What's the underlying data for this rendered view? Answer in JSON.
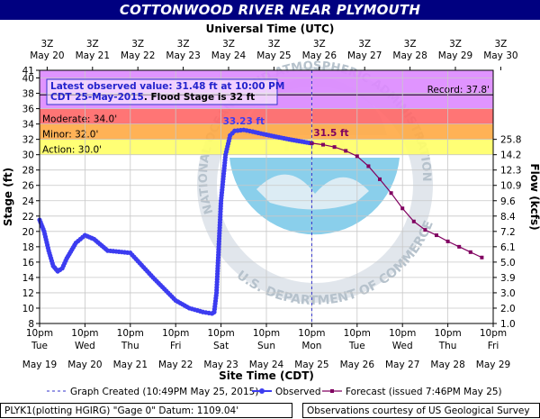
{
  "title": "COTTONWOOD RIVER NEAR PLYMOUTH",
  "top_axis_title": "Universal Time (UTC)",
  "bottom_axis_title": "Site Time (CDT)",
  "left_axis_title": "Stage (ft)",
  "right_axis_title": "Flow (kcfs)",
  "utc_ticks": [
    {
      "hour": "3Z",
      "date": "May 20"
    },
    {
      "hour": "3Z",
      "date": "May 21"
    },
    {
      "hour": "3Z",
      "date": "May 22"
    },
    {
      "hour": "3Z",
      "date": "May 23"
    },
    {
      "hour": "3Z",
      "date": "May 24"
    },
    {
      "hour": "3Z",
      "date": "May 25"
    },
    {
      "hour": "3Z",
      "date": "May 26"
    },
    {
      "hour": "3Z",
      "date": "May 27"
    },
    {
      "hour": "3Z",
      "date": "May 28"
    },
    {
      "hour": "3Z",
      "date": "May 29"
    },
    {
      "hour": "3Z",
      "date": "May 30"
    }
  ],
  "local_ticks": [
    {
      "time": "10pm",
      "day": "Tue",
      "date": "May 19"
    },
    {
      "time": "10pm",
      "day": "Wed",
      "date": "May 20"
    },
    {
      "time": "10pm",
      "day": "Thu",
      "date": "May 21"
    },
    {
      "time": "10pm",
      "day": "Fri",
      "date": "May 22"
    },
    {
      "time": "10pm",
      "day": "Sat",
      "date": "May 23"
    },
    {
      "time": "10pm",
      "day": "Sun",
      "date": "May 24"
    },
    {
      "time": "10pm",
      "day": "Mon",
      "date": "May 25"
    },
    {
      "time": "10pm",
      "day": "Tue",
      "date": "May 26"
    },
    {
      "time": "10pm",
      "day": "Wed",
      "date": "May 27"
    },
    {
      "time": "10pm",
      "day": "Thu",
      "date": "May 28"
    },
    {
      "time": "10pm",
      "day": "Fri",
      "date": "May 29"
    }
  ],
  "stage_ticks": [
    "8",
    "10",
    "12",
    "14",
    "16",
    "18",
    "20",
    "22",
    "24",
    "26",
    "28",
    "30",
    "32",
    "34",
    "36",
    "38",
    "40",
    "41"
  ],
  "flow_ticks": [
    "1.0",
    "2.0",
    "3.0",
    "3.9",
    "5.0",
    "6.1",
    "7.2",
    "8.4",
    "9.6",
    "10.9",
    "12.3",
    "14.2",
    "25.8"
  ],
  "info": {
    "line1": "Latest observed value: 31.48 ft at 10:00 PM",
    "line2a": "CDT 25-May-2015",
    "line2b": ". Flood Stage is 32 ft"
  },
  "categories": [
    {
      "label": "Record: 37.8'",
      "color": "#dd88ff"
    },
    {
      "label": "Moderate: 34.0'",
      "color": "#ff6666"
    },
    {
      "label": "Minor: 32.0'",
      "color": "#ffaa44"
    },
    {
      "label": "Action: 30.0'",
      "color": "#ffff66"
    }
  ],
  "crest_label": "33.23 ft",
  "forecast_label": "31.5 ft",
  "legend": {
    "created": "Graph Created (10:49PM May 25, 2015)",
    "observed": "Observed",
    "forecast": "Forecast (issued 7:46PM May 25)"
  },
  "footer_left": "PLYK1(plotting HGIRG) \"Gage 0\" Datum: 1109.04'",
  "footer_right": "Observations courtesy of US Geological Survey",
  "watermark_text": "NATIONAL OCEANIC AND ATMOSPHERIC ADMINISTRATION",
  "watermark_bottom": "U.S. DEPARTMENT OF COMMERCE",
  "watermark_noaa": "NOAA",
  "chart_data": {
    "type": "line",
    "title": "COTTONWOOD RIVER NEAR PLYMOUTH",
    "xlabel": "Site Time (CDT)",
    "ylabel": "Stage (ft)",
    "y2label": "Flow (kcfs)",
    "ylim": [
      8,
      41
    ],
    "x_unit": "days after 10pm CDT May 19, 2015",
    "xlim": [
      0,
      10
    ],
    "thresholds": {
      "action": 30.0,
      "minor": 32.0,
      "moderate": 34.0,
      "record": 37.8
    },
    "series": [
      {
        "name": "Observed",
        "x": [
          0,
          0.1,
          0.2,
          0.3,
          0.4,
          0.5,
          0.6,
          0.8,
          1.0,
          1.2,
          1.5,
          2.0,
          2.5,
          3.0,
          3.3,
          3.6,
          3.8,
          3.85,
          3.9,
          3.95,
          4.0,
          4.1,
          4.2,
          4.3,
          4.5,
          4.7,
          5.0,
          5.5,
          6.0
        ],
        "y": [
          21.5,
          20,
          17.5,
          15.5,
          14.8,
          15.2,
          16.5,
          18.5,
          19.5,
          19,
          17.5,
          17.2,
          14,
          11,
          10,
          9.5,
          9.3,
          9.5,
          12,
          18,
          24,
          30,
          32.5,
          33.1,
          33.23,
          33.0,
          32.6,
          32.0,
          31.48
        ]
      },
      {
        "name": "Forecast",
        "x": [
          6.0,
          6.25,
          6.5,
          6.75,
          7.0,
          7.25,
          7.5,
          7.75,
          8.0,
          8.25,
          8.5,
          8.75,
          9.0,
          9.25,
          9.5,
          9.75
        ],
        "y": [
          31.5,
          31.3,
          31.0,
          30.5,
          29.8,
          28.5,
          26.8,
          25.0,
          23.0,
          21.3,
          20.2,
          19.5,
          18.7,
          18.0,
          17.3,
          16.6
        ]
      }
    ]
  }
}
